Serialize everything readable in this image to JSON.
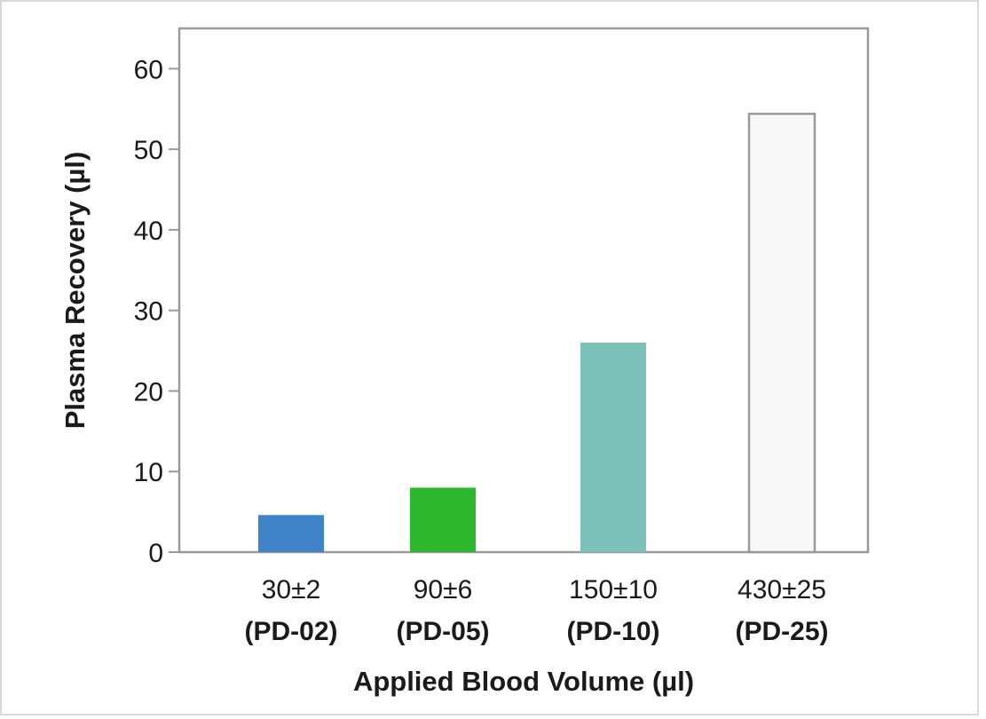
{
  "chart_data": {
    "type": "bar",
    "categories": [
      {
        "volume": "30±2",
        "model": "(PD-02)"
      },
      {
        "volume": "90±6",
        "model": "(PD-05)"
      },
      {
        "volume": "150±10",
        "model": "(PD-10)"
      },
      {
        "volume": "430±25",
        "model": "(PD-25)"
      }
    ],
    "values": [
      4.6,
      8.0,
      26.0,
      54.4
    ],
    "colors": [
      "#3f83c8",
      "#2eb82e",
      "#7cc1b9",
      "#f8f8f8"
    ],
    "bar_outline": "#9a9a9a",
    "axis_color": "#9a9a9a",
    "xlabel": "Applied Blood Volume (µl)",
    "ylabel": "Plasma Recovery (µl)",
    "ylim": [
      0,
      65
    ],
    "yticks": [
      0,
      10,
      20,
      30,
      40,
      50,
      60
    ],
    "grid": false
  }
}
